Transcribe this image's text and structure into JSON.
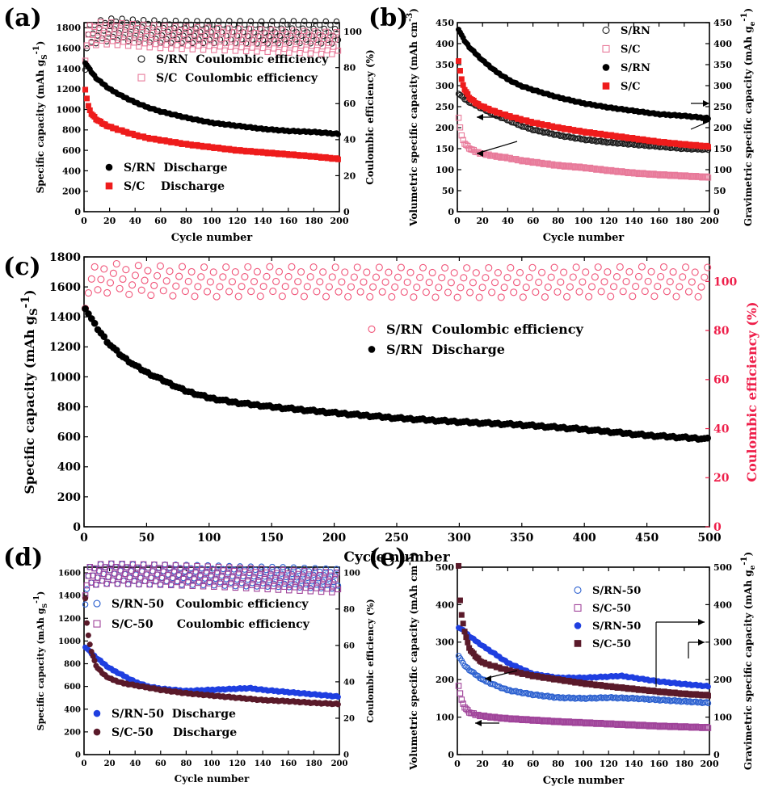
{
  "chart_data": [
    {
      "panel": "(a)",
      "type": "scatter",
      "xlabel": "Cycle number",
      "ylabel": "Specific capacity (mAh gS-1)",
      "ylabel_parts": {
        "pre": "Specific capacity (mAh g",
        "sub": "S",
        "sup": "-1",
        "post": ")"
      },
      "y2label": "Coulombic efficiency (%)",
      "xlim": [
        0,
        200
      ],
      "ylim": [
        0,
        1850
      ],
      "y2lim": [
        0,
        105
      ],
      "xticks": [
        "0",
        "20",
        "40",
        "60",
        "80",
        "100",
        "120",
        "140",
        "160",
        "180",
        "200"
      ],
      "yticks": [
        "0",
        "200",
        "400",
        "600",
        "800",
        "1000",
        "1200",
        "1400",
        "1600",
        "1800"
      ],
      "y2ticks": [
        "0",
        "20",
        "40",
        "60",
        "80",
        "100"
      ],
      "series": [
        {
          "name": "S/RN  Coulombic efficiency",
          "axis": "y2",
          "marker": "open-circle",
          "color": "#1a1a1a",
          "x": [
            1,
            2,
            3,
            5,
            8,
            12,
            15,
            20,
            25,
            30,
            40,
            50,
            60,
            80,
            100,
            120,
            140,
            160,
            180,
            200
          ],
          "y": [
            85,
            92,
            96,
            98,
            99.5,
            100,
            100.5,
            101,
            101.5,
            101,
            100.5,
            100.2,
            100,
            99.8,
            99.7,
            99.8,
            99.5,
            99.8,
            99.6,
            99.5
          ]
        },
        {
          "name": "S/C  Coulombic efficiency",
          "axis": "y2",
          "marker": "open-square",
          "color": "#e87a9a",
          "x": [
            1,
            2,
            3,
            5,
            8,
            12,
            15,
            20,
            25,
            30,
            40,
            50,
            60,
            80,
            100,
            120,
            140,
            160,
            180,
            200
          ],
          "y": [
            90,
            94,
            96,
            97.5,
            98.5,
            99,
            99.2,
            99,
            98.8,
            98.5,
            98,
            97.5,
            97,
            96.5,
            96,
            95.5,
            95,
            94.5,
            94,
            93.5
          ]
        },
        {
          "name": "S/RN  Discharge",
          "axis": "y",
          "marker": "filled-circle",
          "color": "#000000",
          "x": [
            1,
            5,
            10,
            20,
            30,
            40,
            50,
            60,
            80,
            100,
            120,
            140,
            160,
            180,
            200
          ],
          "y": [
            1460,
            1380,
            1300,
            1200,
            1130,
            1070,
            1020,
            980,
            920,
            870,
            840,
            810,
            790,
            780,
            760
          ]
        },
        {
          "name": "S/C    Discharge",
          "axis": "y",
          "marker": "filled-square",
          "color": "#ee1c1c",
          "x": [
            1,
            3,
            5,
            10,
            15,
            20,
            30,
            40,
            50,
            60,
            80,
            100,
            120,
            140,
            160,
            180,
            200
          ],
          "y": [
            1200,
            1050,
            970,
            900,
            860,
            830,
            790,
            750,
            720,
            700,
            660,
            630,
            600,
            580,
            560,
            540,
            515
          ]
        }
      ]
    },
    {
      "panel": "(b)",
      "type": "scatter",
      "xlabel": "Cycle number",
      "ylabel": "Volumetric specific capacity (mAh cm-3)",
      "ylabel_parts": {
        "pre": "Volumetric specific capacity (mAh cm",
        "sub": "",
        "sup": "-3",
        "post": ")"
      },
      "y2label": "Gravimetric specific capacity (mAh ge-1)",
      "y2label_parts": {
        "pre": "Gravimetric specific capacity (mAh g",
        "sub": "e",
        "sup": "-1",
        "post": ")"
      },
      "xlim": [
        0,
        200
      ],
      "ylim": [
        0,
        450
      ],
      "y2lim": [
        0,
        450
      ],
      "xticks": [
        "0",
        "20",
        "40",
        "60",
        "80",
        "100",
        "120",
        "140",
        "160",
        "180",
        "200"
      ],
      "yticks": [
        "0",
        "50",
        "100",
        "150",
        "200",
        "250",
        "300",
        "350",
        "400",
        "450"
      ],
      "y2ticks": [
        "0",
        "50",
        "100",
        "150",
        "200",
        "250",
        "300",
        "350",
        "400",
        "450"
      ],
      "series": [
        {
          "name": "S/RN",
          "axis": "y",
          "marker": "open-circle",
          "color": "#1a1a1a",
          "x": [
            1,
            5,
            10,
            20,
            30,
            40,
            50,
            60,
            80,
            100,
            120,
            140,
            160,
            180,
            200
          ],
          "y": [
            282,
            270,
            260,
            245,
            230,
            218,
            205,
            195,
            182,
            172,
            165,
            160,
            155,
            150,
            148
          ]
        },
        {
          "name": "S/C",
          "axis": "y",
          "marker": "open-square",
          "color": "#e87a9a",
          "x": [
            1,
            3,
            5,
            10,
            15,
            20,
            30,
            40,
            50,
            60,
            80,
            100,
            120,
            140,
            160,
            180,
            200
          ],
          "y": [
            225,
            185,
            165,
            150,
            142,
            138,
            132,
            128,
            122,
            118,
            110,
            105,
            98,
            92,
            88,
            85,
            82
          ]
        },
        {
          "name": "S/RN",
          "axis": "y2",
          "marker": "filled-circle",
          "color": "#000000",
          "x": [
            1,
            5,
            10,
            20,
            30,
            40,
            50,
            60,
            80,
            100,
            120,
            140,
            160,
            180,
            200
          ],
          "y": [
            435,
            410,
            390,
            360,
            335,
            315,
            300,
            290,
            272,
            258,
            248,
            240,
            232,
            228,
            222
          ]
        },
        {
          "name": "S/C",
          "axis": "y2",
          "marker": "filled-square",
          "color": "#ee1c1c",
          "x": [
            1,
            3,
            5,
            10,
            15,
            20,
            30,
            40,
            50,
            60,
            80,
            100,
            120,
            140,
            160,
            180,
            200
          ],
          "y": [
            360,
            320,
            295,
            270,
            258,
            250,
            238,
            228,
            220,
            212,
            200,
            190,
            182,
            174,
            166,
            160,
            155
          ]
        }
      ]
    },
    {
      "panel": "(c)",
      "type": "scatter",
      "xlabel": "Cycle number",
      "ylabel": "Specific capacity (mAh gS-1)",
      "ylabel_parts": {
        "pre": "Specific capacity (mAh g",
        "sub": "S",
        "sup": "-1",
        "post": ")"
      },
      "y2label": "Coulombic efficiency (%)",
      "xlim": [
        0,
        500
      ],
      "ylim": [
        0,
        1800
      ],
      "y2lim": [
        0,
        110
      ],
      "xticks": [
        "0",
        "50",
        "100",
        "150",
        "200",
        "250",
        "300",
        "350",
        "400",
        "450",
        "500"
      ],
      "yticks": [
        "0",
        "200",
        "400",
        "600",
        "800",
        "1000",
        "1200",
        "1400",
        "1600",
        "1800"
      ],
      "y2ticks": [
        "0",
        "20",
        "40",
        "60",
        "80",
        "100"
      ],
      "series": [
        {
          "name": "S/RN  Coulombic efficiency",
          "axis": "y2",
          "marker": "open-circle",
          "color": "#f0567a",
          "x": [
            1,
            3,
            6,
            10,
            15,
            20,
            30,
            40,
            60,
            80,
            100,
            150,
            200,
            250,
            300,
            350,
            400,
            450,
            500
          ],
          "y": [
            95,
            97,
            99,
            100.5,
            101,
            101.5,
            101,
            100.5,
            100.3,
            100,
            99.8,
            100,
            99.8,
            99.7,
            99.5,
            99.6,
            99.8,
            100,
            99.7
          ]
        },
        {
          "name": "S/RN  Discharge",
          "axis": "y",
          "marker": "filled-circle",
          "color": "#000000",
          "x": [
            1,
            5,
            10,
            20,
            30,
            40,
            50,
            60,
            80,
            100,
            120,
            150,
            200,
            250,
            300,
            350,
            400,
            450,
            500
          ],
          "y": [
            1460,
            1400,
            1330,
            1220,
            1140,
            1080,
            1030,
            990,
            910,
            860,
            830,
            800,
            760,
            725,
            700,
            680,
            650,
            610,
            585
          ]
        }
      ]
    },
    {
      "panel": "(d)",
      "type": "scatter",
      "xlabel": "Cycle number",
      "ylabel": "Specific capacity (mAh gS-1)",
      "ylabel_parts": {
        "pre": "Specific capacity (mAh g",
        "sub": "S",
        "sup": "-1",
        "post": ")"
      },
      "y2label": "Coulombic efficiency (%)",
      "xlim": [
        0,
        200
      ],
      "ylim": [
        0,
        1650
      ],
      "y2lim": [
        0,
        103
      ],
      "xticks": [
        "0",
        "20",
        "40",
        "60",
        "80",
        "100",
        "120",
        "140",
        "160",
        "180",
        "200"
      ],
      "yticks": [
        "0",
        "200",
        "400",
        "600",
        "800",
        "1000",
        "1200",
        "1400",
        "1600"
      ],
      "y2ticks": [
        "0",
        "20",
        "40",
        "60",
        "80",
        "100"
      ],
      "series": [
        {
          "name": "S/RN-50   Coulombic efficiency",
          "axis": "y2",
          "marker": "open-circle",
          "color": "#2a5fcf",
          "x": [
            1,
            3,
            5,
            10,
            20,
            40,
            60,
            80,
            100,
            120,
            140,
            160,
            180,
            200
          ],
          "y": [
            88,
            96,
            98,
            99,
            99.5,
            99,
            99,
            98.8,
            98.5,
            98,
            97.8,
            97.5,
            97,
            96.5
          ]
        },
        {
          "name": "S/C-50      Coulombic efficiency",
          "axis": "y2",
          "marker": "open-square",
          "color": "#a0449a",
          "x": [
            1,
            3,
            5,
            10,
            20,
            40,
            60,
            80,
            100,
            120,
            140,
            160,
            180,
            200
          ],
          "y": [
            93,
            96,
            98,
            99,
            99.5,
            99.2,
            98.8,
            98.3,
            97.8,
            97.2,
            96.5,
            95.8,
            95.2,
            94.5
          ]
        },
        {
          "name": "S/RN-50  Discharge",
          "axis": "y",
          "marker": "filled-circle",
          "color": "#1f3fe0",
          "x": [
            1,
            5,
            10,
            20,
            30,
            40,
            50,
            60,
            80,
            100,
            120,
            130,
            140,
            160,
            180,
            200
          ],
          "y": [
            950,
            900,
            850,
            760,
            700,
            640,
            600,
            580,
            560,
            570,
            580,
            585,
            570,
            550,
            530,
            510
          ]
        },
        {
          "name": "S/C-50     Discharge",
          "axis": "y",
          "marker": "filled-circle",
          "color": "#5a1a2a",
          "x": [
            1,
            2,
            3,
            4,
            5,
            8,
            10,
            15,
            20,
            30,
            40,
            60,
            80,
            100,
            120,
            140,
            160,
            180,
            200
          ],
          "y": [
            1380,
            1180,
            1080,
            1000,
            940,
            830,
            770,
            710,
            670,
            630,
            610,
            570,
            540,
            520,
            500,
            480,
            470,
            455,
            445
          ]
        }
      ]
    },
    {
      "panel": "(e)",
      "type": "scatter",
      "xlabel": "Cycle number",
      "ylabel": "Volumetric specific capacity (mAh cm-3)",
      "ylabel_parts": {
        "pre": "Volumetric specific capacity (mAh cm",
        "sub": "",
        "sup": "-3",
        "post": ")"
      },
      "y2label": "Gravimetric specific capacity (mAh ge-1)",
      "y2label_parts": {
        "pre": "Gravimetric specific capacity (mAh g",
        "sub": "e",
        "sup": "-1",
        "post": ")"
      },
      "xlim": [
        0,
        200
      ],
      "ylim": [
        0,
        500
      ],
      "y2lim": [
        0,
        500
      ],
      "xticks": [
        "0",
        "20",
        "40",
        "60",
        "80",
        "100",
        "120",
        "140",
        "160",
        "180",
        "200"
      ],
      "yticks": [
        "0",
        "100",
        "200",
        "300",
        "400",
        "500"
      ],
      "y2ticks": [
        "0",
        "100",
        "200",
        "300",
        "400",
        "500"
      ],
      "series": [
        {
          "name": "S/RN-50",
          "axis": "y",
          "marker": "open-circle",
          "color": "#2a5fcf",
          "x": [
            1,
            5,
            10,
            20,
            30,
            40,
            60,
            80,
            100,
            120,
            140,
            160,
            180,
            200
          ],
          "y": [
            265,
            240,
            225,
            200,
            185,
            172,
            160,
            152,
            150,
            152,
            150,
            146,
            142,
            138
          ]
        },
        {
          "name": "S/C-50",
          "axis": "y",
          "marker": "open-square",
          "color": "#a0449a",
          "x": [
            1,
            3,
            5,
            8,
            10,
            15,
            20,
            30,
            40,
            60,
            80,
            100,
            120,
            140,
            160,
            180,
            200
          ],
          "y": [
            185,
            150,
            130,
            118,
            112,
            106,
            103,
            99,
            96,
            92,
            88,
            85,
            82,
            79,
            76,
            74,
            72
          ]
        },
        {
          "name": "S/RN-50",
          "axis": "y2",
          "marker": "filled-circle",
          "color": "#1f3fe0",
          "x": [
            1,
            5,
            10,
            20,
            30,
            40,
            60,
            80,
            100,
            120,
            130,
            140,
            160,
            180,
            200
          ],
          "y": [
            340,
            330,
            315,
            290,
            268,
            245,
            215,
            205,
            205,
            208,
            210,
            205,
            195,
            188,
            182
          ]
        },
        {
          "name": "S/C-50",
          "axis": "y2",
          "marker": "filled-square",
          "color": "#5a1a2a",
          "x": [
            1,
            2,
            3,
            5,
            8,
            10,
            15,
            20,
            30,
            40,
            60,
            80,
            100,
            120,
            140,
            160,
            180,
            200
          ],
          "y": [
            505,
            420,
            380,
            340,
            300,
            280,
            260,
            245,
            235,
            225,
            210,
            200,
            190,
            182,
            175,
            168,
            162,
            158
          ]
        }
      ]
    }
  ]
}
